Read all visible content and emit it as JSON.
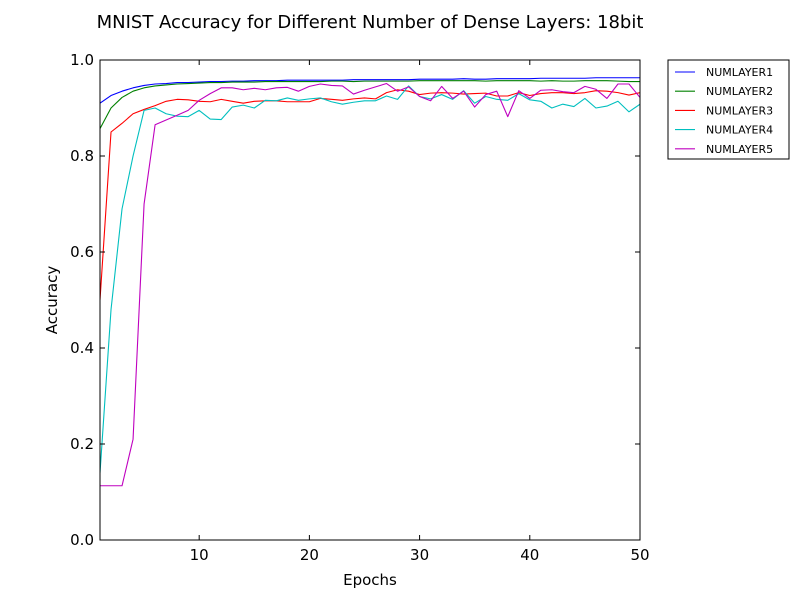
{
  "chart_data": {
    "type": "line",
    "title": "MNIST Accuracy for Different Number of Dense Layers: 18bit",
    "xlabel": "Epochs",
    "ylabel": "Accuracy",
    "xlim": [
      1,
      50
    ],
    "ylim": [
      0.0,
      1.0
    ],
    "xticks": [
      10,
      20,
      30,
      40,
      50
    ],
    "xtick_labels": [
      "10",
      "20",
      "30",
      "40",
      "50"
    ],
    "yticks": [
      0.0,
      0.2,
      0.4,
      0.6,
      0.8,
      1.0
    ],
    "ytick_labels": [
      "0.0",
      "0.2",
      "0.4",
      "0.6",
      "0.8",
      "1.0"
    ],
    "grid": false,
    "legend_position": "outside-top-right",
    "x": [
      1,
      2,
      3,
      4,
      5,
      6,
      7,
      8,
      9,
      10,
      11,
      12,
      13,
      14,
      15,
      16,
      17,
      18,
      19,
      20,
      21,
      22,
      23,
      24,
      25,
      26,
      27,
      28,
      29,
      30,
      31,
      32,
      33,
      34,
      35,
      36,
      37,
      38,
      39,
      40,
      41,
      42,
      43,
      44,
      45,
      46,
      47,
      48,
      49,
      50
    ],
    "series": [
      {
        "name": "NUMLAYER1",
        "color": "#0000ff",
        "values": [
          0.91,
          0.926,
          0.935,
          0.942,
          0.947,
          0.95,
          0.951,
          0.953,
          0.953,
          0.954,
          0.955,
          0.955,
          0.956,
          0.956,
          0.957,
          0.957,
          0.957,
          0.958,
          0.958,
          0.958,
          0.958,
          0.958,
          0.958,
          0.959,
          0.959,
          0.959,
          0.959,
          0.959,
          0.959,
          0.96,
          0.96,
          0.96,
          0.96,
          0.961,
          0.96,
          0.96,
          0.961,
          0.961,
          0.961,
          0.961,
          0.962,
          0.962,
          0.962,
          0.962,
          0.962,
          0.963,
          0.963,
          0.963,
          0.963,
          0.963
        ]
      },
      {
        "name": "NUMLAYER2",
        "color": "#008000",
        "values": [
          0.857,
          0.9,
          0.922,
          0.935,
          0.942,
          0.946,
          0.948,
          0.95,
          0.951,
          0.952,
          0.953,
          0.953,
          0.954,
          0.954,
          0.954,
          0.955,
          0.955,
          0.955,
          0.955,
          0.955,
          0.955,
          0.956,
          0.956,
          0.955,
          0.956,
          0.956,
          0.956,
          0.956,
          0.956,
          0.957,
          0.957,
          0.957,
          0.957,
          0.957,
          0.957,
          0.956,
          0.957,
          0.957,
          0.957,
          0.957,
          0.956,
          0.957,
          0.956,
          0.956,
          0.957,
          0.957,
          0.957,
          0.956,
          0.955,
          0.955
        ]
      },
      {
        "name": "NUMLAYER3",
        "color": "#ff0000",
        "values": [
          0.5,
          0.85,
          0.868,
          0.888,
          0.897,
          0.905,
          0.914,
          0.918,
          0.917,
          0.914,
          0.913,
          0.918,
          0.914,
          0.91,
          0.914,
          0.915,
          0.915,
          0.913,
          0.913,
          0.913,
          0.92,
          0.918,
          0.916,
          0.919,
          0.921,
          0.919,
          0.932,
          0.938,
          0.935,
          0.928,
          0.931,
          0.932,
          0.931,
          0.929,
          0.93,
          0.931,
          0.925,
          0.925,
          0.932,
          0.926,
          0.93,
          0.932,
          0.932,
          0.93,
          0.932,
          0.936,
          0.935,
          0.932,
          0.927,
          0.932
        ]
      },
      {
        "name": "NUMLAYER4",
        "color": "#00bfbf",
        "values": [
          0.14,
          0.48,
          0.69,
          0.8,
          0.895,
          0.9,
          0.888,
          0.883,
          0.882,
          0.895,
          0.877,
          0.876,
          0.902,
          0.906,
          0.9,
          0.916,
          0.915,
          0.921,
          0.916,
          0.919,
          0.921,
          0.913,
          0.908,
          0.912,
          0.915,
          0.915,
          0.925,
          0.918,
          0.946,
          0.924,
          0.919,
          0.928,
          0.918,
          0.936,
          0.91,
          0.924,
          0.918,
          0.916,
          0.93,
          0.917,
          0.914,
          0.9,
          0.908,
          0.903,
          0.92,
          0.9,
          0.904,
          0.914,
          0.892,
          0.908
        ]
      },
      {
        "name": "NUMLAYER5",
        "color": "#bf00bf",
        "values": [
          0.113,
          0.113,
          0.113,
          0.21,
          0.7,
          0.865,
          0.875,
          0.885,
          0.895,
          0.916,
          0.93,
          0.942,
          0.942,
          0.938,
          0.941,
          0.938,
          0.942,
          0.943,
          0.935,
          0.945,
          0.95,
          0.947,
          0.946,
          0.929,
          0.937,
          0.944,
          0.951,
          0.935,
          0.944,
          0.924,
          0.915,
          0.945,
          0.92,
          0.935,
          0.902,
          0.928,
          0.935,
          0.882,
          0.936,
          0.92,
          0.937,
          0.938,
          0.934,
          0.932,
          0.945,
          0.939,
          0.92,
          0.95,
          0.95,
          0.922
        ]
      }
    ]
  }
}
